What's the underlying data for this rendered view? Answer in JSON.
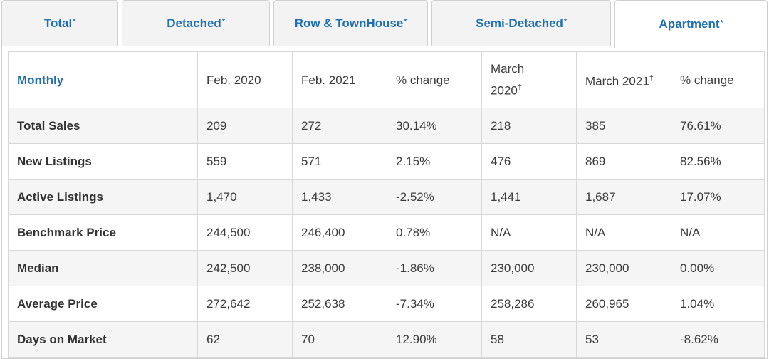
{
  "tabs": [
    {
      "label": "Total",
      "mark": "*"
    },
    {
      "label": "Detached",
      "mark": "*"
    },
    {
      "label": "Row & TownHouse",
      "mark": "*"
    },
    {
      "label": "Semi-Detached",
      "mark": "*"
    },
    {
      "label": "Apartment",
      "mark": "*",
      "active": true
    }
  ],
  "table": {
    "headers": {
      "monthly": "Monthly",
      "feb2020": "Feb. 2020",
      "feb2021": "Feb. 2021",
      "change1": "% change",
      "march2020_line1": "March",
      "march2020_line2": "2020",
      "march2020_mark": "†",
      "march2021": "March 2021",
      "march2021_mark": "†",
      "change2": "% change"
    },
    "rows": [
      {
        "label": "Total Sales",
        "feb2020": "209",
        "feb2021": "272",
        "change1": "30.14%",
        "mar2020": "218",
        "mar2021": "385",
        "change2": "76.61%"
      },
      {
        "label": "New Listings",
        "feb2020": "559",
        "feb2021": "571",
        "change1": "2.15%",
        "mar2020": "476",
        "mar2021": "869",
        "change2": "82.56%"
      },
      {
        "label": "Active Listings",
        "feb2020": "1,470",
        "feb2021": "1,433",
        "change1": "-2.52%",
        "mar2020": "1,441",
        "mar2021": "1,687",
        "change2": "17.07%"
      },
      {
        "label": "Benchmark Price",
        "feb2020": "244,500",
        "feb2021": "246,400",
        "change1": "0.78%",
        "mar2020": "N/A",
        "mar2021": "N/A",
        "change2": "N/A"
      },
      {
        "label": "Median",
        "feb2020": "242,500",
        "feb2021": "238,000",
        "change1": "-1.86%",
        "mar2020": "230,000",
        "mar2021": "230,000",
        "change2": "0.00%"
      },
      {
        "label": "Average Price",
        "feb2020": "272,642",
        "feb2021": "252,638",
        "change1": "-7.34%",
        "mar2020": "258,286",
        "mar2021": "260,965",
        "change2": "1.04%"
      },
      {
        "label": "Days on Market",
        "feb2020": "62",
        "feb2021": "70",
        "change1": "12.90%",
        "mar2020": "58",
        "mar2021": "53",
        "change2": "-8.62%"
      }
    ]
  },
  "colors": {
    "accent": "#1f6fb2",
    "row_alt": "#f5f5f5",
    "border": "#d8d8d8"
  }
}
